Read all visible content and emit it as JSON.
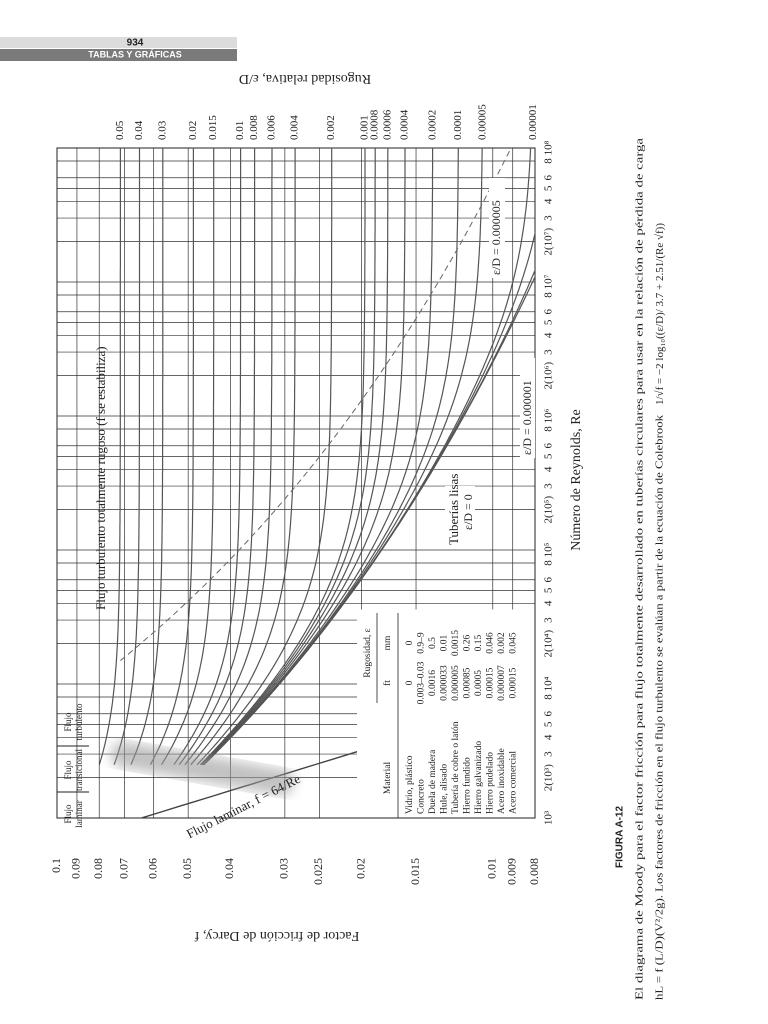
{
  "header": {
    "page_number": "934",
    "section": "TABLAS Y GRÁFICAS"
  },
  "chart_data": {
    "type": "moody",
    "xlabel": "Número de Reynolds, Re",
    "ylabel": "Factor de fricción de Darcy, f",
    "y2label": "Rugosidad relativa, ε/D",
    "xlim": [
      1000,
      100000000
    ],
    "ylim": [
      0.008,
      0.1
    ],
    "log_x": true,
    "log_y": true,
    "grid": true,
    "color": "#555555",
    "xticks": [
      {
        "value": 1000,
        "label": "10³"
      },
      {
        "value": 2000,
        "label": "2(10³)"
      },
      {
        "value": 3000,
        "label": "3"
      },
      {
        "value": 4000,
        "label": "4"
      },
      {
        "value": 5000,
        "label": "5"
      },
      {
        "value": 6000,
        "label": "6"
      },
      {
        "value": 8000,
        "label": "8"
      },
      {
        "value": 10000,
        "label": "10⁴"
      },
      {
        "value": 20000,
        "label": "2(10⁴)"
      },
      {
        "value": 30000,
        "label": "3"
      },
      {
        "value": 40000,
        "label": "4"
      },
      {
        "value": 50000,
        "label": "5"
      },
      {
        "value": 60000,
        "label": "6"
      },
      {
        "value": 80000,
        "label": "8"
      },
      {
        "value": 100000,
        "label": "10⁵"
      },
      {
        "value": 200000,
        "label": "2(10⁵)"
      },
      {
        "value": 300000,
        "label": "3"
      },
      {
        "value": 400000,
        "label": "4"
      },
      {
        "value": 500000,
        "label": "5"
      },
      {
        "value": 600000,
        "label": "6"
      },
      {
        "value": 800000,
        "label": "8"
      },
      {
        "value": 1000000,
        "label": "10⁶"
      },
      {
        "value": 2000000,
        "label": "2(10⁶)"
      },
      {
        "value": 3000000,
        "label": "3"
      },
      {
        "value": 4000000,
        "label": "4"
      },
      {
        "value": 5000000,
        "label": "5"
      },
      {
        "value": 6000000,
        "label": "6"
      },
      {
        "value": 8000000,
        "label": "8"
      },
      {
        "value": 10000000,
        "label": "10⁷"
      },
      {
        "value": 20000000,
        "label": "2(10⁷)"
      },
      {
        "value": 30000000,
        "label": "3"
      },
      {
        "value": 40000000,
        "label": "4"
      },
      {
        "value": 50000000,
        "label": "5"
      },
      {
        "value": 60000000,
        "label": "6"
      },
      {
        "value": 80000000,
        "label": "8"
      },
      {
        "value": 100000000,
        "label": "10⁸"
      }
    ],
    "yticks": [
      0.008,
      0.009,
      0.01,
      0.015,
      0.02,
      0.025,
      0.03,
      0.04,
      0.05,
      0.06,
      0.07,
      0.08,
      0.09,
      0.1
    ],
    "relative_roughness": [
      0.05,
      0.04,
      0.03,
      0.02,
      0.015,
      0.01,
      0.008,
      0.006,
      0.004,
      0.002,
      0.001,
      0.0008,
      0.0006,
      0.0004,
      0.0002,
      0.0001,
      5e-05,
      1e-05
    ],
    "inline_curves": [
      {
        "value": 5e-06,
        "label": "ε/D = 0.000005"
      },
      {
        "value": 1e-06,
        "label": "ε/D = 0.000001"
      }
    ],
    "smooth": {
      "name": "Tuberías lisas",
      "value": 0,
      "label": "ε/D = 0"
    },
    "laminar": {
      "text": "Flujo laminar, f =",
      "constant": 64,
      "suffix": "/Re"
    },
    "regions": [
      {
        "line1": "Flujo",
        "line2": "laminar"
      },
      {
        "line1": "Flujo",
        "line2": "transicional"
      },
      {
        "line1": "Flujo",
        "line2": "turbulento"
      }
    ],
    "rough_zone_label": "Flujo turbulento totalmente rugoso (f se estabiliza)"
  },
  "roughness_table": {
    "title": "Rugosidad, ε",
    "columns": [
      "Material",
      "ft",
      "mm"
    ],
    "rows": [
      [
        "Vidrio, plástico",
        "0",
        "0"
      ],
      [
        "Concreto",
        "0.003–0.03",
        "0.9–9"
      ],
      [
        "Duela de madera",
        "0.0016",
        "0.5"
      ],
      [
        "Hule, alisado",
        "0.000033",
        "0.01"
      ],
      [
        "Tubería de cobre o latón",
        "0.000005",
        "0.0015"
      ],
      [
        "Hierro fundido",
        "0.00085",
        "0.26"
      ],
      [
        "Hierro galvanizado",
        "0.0005",
        "0.15"
      ],
      [
        "Hierro pudelado",
        "0.00015",
        "0.046"
      ],
      [
        "Acero inoxidable",
        "0.000007",
        "0.002"
      ],
      [
        "Acero comercial",
        "0.00015",
        "0.045"
      ]
    ]
  },
  "caption": {
    "label": "FIGURA A-12",
    "line1": "El diagrama de Moody para el factor fricción para flujo totalmente desarrollado en tuberías circulares para usar en la relación de pérdida de carga",
    "line2": "hL = f (L/D)(V²/2g). Los factores de fricción en el flujo turbulento se evalúan a partir de la ecuación de Colebrook",
    "colebrook": {
      "left": "1/√f = −2 log₁₀((ε/D)/",
      "a": 3.7,
      "mid": "+",
      "b": 2.51,
      "right": "/(Re √f))"
    }
  }
}
